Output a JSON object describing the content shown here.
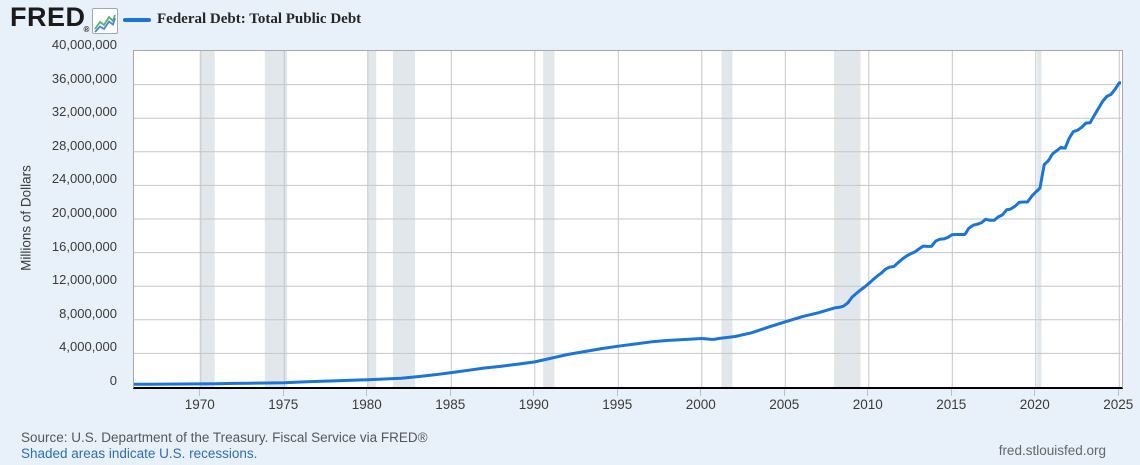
{
  "header": {
    "logo": "FRED",
    "registered_mark": "®"
  },
  "legend": {
    "swatch_color": "#1c74d4",
    "label": "Federal Debt: Total Public Debt"
  },
  "footer": {
    "source": "Source: U.S. Department of the Treasury. Fiscal Service via FRED®",
    "recession_note": "Shaded areas indicate U.S. recessions.",
    "site": "fred.stlouisfed.org"
  },
  "chart_data": {
    "type": "line",
    "title": "Federal Debt: Total Public Debt",
    "xlabel": "",
    "ylabel": "Millions of Dollars",
    "xlim": [
      1966,
      2025.1
    ],
    "ylim": [
      0,
      40000000
    ],
    "x_ticks": [
      1970,
      1975,
      1980,
      1985,
      1990,
      1995,
      2000,
      2005,
      2010,
      2015,
      2020,
      2025
    ],
    "y_tick_step": 4000000,
    "y_tick_labels": [
      "0",
      "4,000,000",
      "8,000,000",
      "12,000,000",
      "16,000,000",
      "20,000,000",
      "24,000,000",
      "28,000,000",
      "32,000,000",
      "36,000,000",
      "40,000,000"
    ],
    "grid": true,
    "legend_position": "top-left",
    "line_color": "#1c74d4",
    "grid_color": "#c6c6c6",
    "recession_color": "#e2e7eb",
    "recessions": [
      [
        1969.92,
        1970.83
      ],
      [
        1973.83,
        1975.17
      ],
      [
        1980.0,
        1980.5
      ],
      [
        1981.5,
        1982.83
      ],
      [
        1990.5,
        1991.17
      ],
      [
        2001.17,
        2001.83
      ],
      [
        2007.92,
        2009.5
      ],
      [
        2020.08,
        2020.33
      ]
    ],
    "series": [
      {
        "name": "Federal Debt: Total Public Debt",
        "units": "Millions of Dollars",
        "points": [
          [
            1966,
            321000
          ],
          [
            1967,
            331000
          ],
          [
            1968,
            346000
          ],
          [
            1969,
            361000
          ],
          [
            1970,
            372000
          ],
          [
            1971,
            391000
          ],
          [
            1972,
            427000
          ],
          [
            1973,
            450000
          ],
          [
            1974,
            472000
          ],
          [
            1975,
            503000
          ],
          [
            1976,
            592000
          ],
          [
            1977,
            662000
          ],
          [
            1978,
            729000
          ],
          [
            1979,
            796000
          ],
          [
            1980,
            857000
          ],
          [
            1981,
            950000
          ],
          [
            1982,
            1047000
          ],
          [
            1983,
            1233000
          ],
          [
            1984,
            1454000
          ],
          [
            1985,
            1713000
          ],
          [
            1986,
            1989000
          ],
          [
            1987,
            2260000
          ],
          [
            1988,
            2473000
          ],
          [
            1989,
            2732000
          ],
          [
            1990,
            2993000
          ],
          [
            1991,
            3441000
          ],
          [
            1992,
            3881000
          ],
          [
            1993,
            4230000
          ],
          [
            1994,
            4576000
          ],
          [
            1995,
            4854000
          ],
          [
            1996,
            5117000
          ],
          [
            1997,
            5380000
          ],
          [
            1998,
            5542000
          ],
          [
            1999,
            5651000
          ],
          [
            2000,
            5773000
          ],
          [
            2000.5,
            5674000
          ],
          [
            2000.75,
            5662000
          ],
          [
            2001,
            5774000
          ],
          [
            2002,
            6006000
          ],
          [
            2003,
            6460000
          ],
          [
            2004,
            7131000
          ],
          [
            2005,
            7765000
          ],
          [
            2006,
            8371000
          ],
          [
            2007,
            8849000
          ],
          [
            2008,
            9438000
          ],
          [
            2008.25,
            9492000
          ],
          [
            2008.5,
            9645000
          ],
          [
            2008.75,
            10025000
          ],
          [
            2009,
            10700000
          ],
          [
            2009.25,
            11127000
          ],
          [
            2009.5,
            11545000
          ],
          [
            2009.75,
            11910000
          ],
          [
            2010,
            12311000
          ],
          [
            2010.25,
            12773000
          ],
          [
            2010.5,
            13202000
          ],
          [
            2010.75,
            13562000
          ],
          [
            2011,
            14025000
          ],
          [
            2011.25,
            14270000
          ],
          [
            2011.5,
            14343000
          ],
          [
            2011.75,
            14790000
          ],
          [
            2012,
            15223000
          ],
          [
            2012.25,
            15582000
          ],
          [
            2012.5,
            15856000
          ],
          [
            2012.75,
            16066000
          ],
          [
            2013,
            16433000
          ],
          [
            2013.25,
            16771000
          ],
          [
            2013.5,
            16738000
          ],
          [
            2013.75,
            16738000
          ],
          [
            2014,
            17352000
          ],
          [
            2014.25,
            17601000
          ],
          [
            2014.5,
            17632000
          ],
          [
            2014.75,
            17824000
          ],
          [
            2015,
            18141000
          ],
          [
            2015.25,
            18152000
          ],
          [
            2015.5,
            18152000
          ],
          [
            2015.75,
            18151000
          ],
          [
            2016,
            18922000
          ],
          [
            2016.25,
            19265000
          ],
          [
            2016.5,
            19382000
          ],
          [
            2016.75,
            19573000
          ],
          [
            2017,
            19977000
          ],
          [
            2017.25,
            19846000
          ],
          [
            2017.5,
            19845000
          ],
          [
            2017.75,
            20245000
          ],
          [
            2018,
            20493000
          ],
          [
            2018.25,
            21090000
          ],
          [
            2018.5,
            21195000
          ],
          [
            2018.75,
            21516000
          ],
          [
            2019,
            21974000
          ],
          [
            2019.25,
            22028000
          ],
          [
            2019.5,
            22023000
          ],
          [
            2019.75,
            22719000
          ],
          [
            2020,
            23201000
          ],
          [
            2020.25,
            23687000
          ],
          [
            2020.5,
            26477000
          ],
          [
            2020.75,
            26945000
          ],
          [
            2021,
            27748000
          ],
          [
            2021.25,
            28133000
          ],
          [
            2021.5,
            28529000
          ],
          [
            2021.75,
            28429000
          ],
          [
            2022,
            29617000
          ],
          [
            2022.25,
            30401000
          ],
          [
            2022.5,
            30569000
          ],
          [
            2022.75,
            30929000
          ],
          [
            2023,
            31420000
          ],
          [
            2023.25,
            31458000
          ],
          [
            2023.5,
            32332000
          ],
          [
            2023.75,
            33167000
          ],
          [
            2024,
            34001000
          ],
          [
            2024.25,
            34587000
          ],
          [
            2024.5,
            34832000
          ],
          [
            2024.75,
            35465000
          ],
          [
            2025,
            36219000
          ],
          [
            2025.08,
            36214000
          ]
        ]
      }
    ]
  }
}
